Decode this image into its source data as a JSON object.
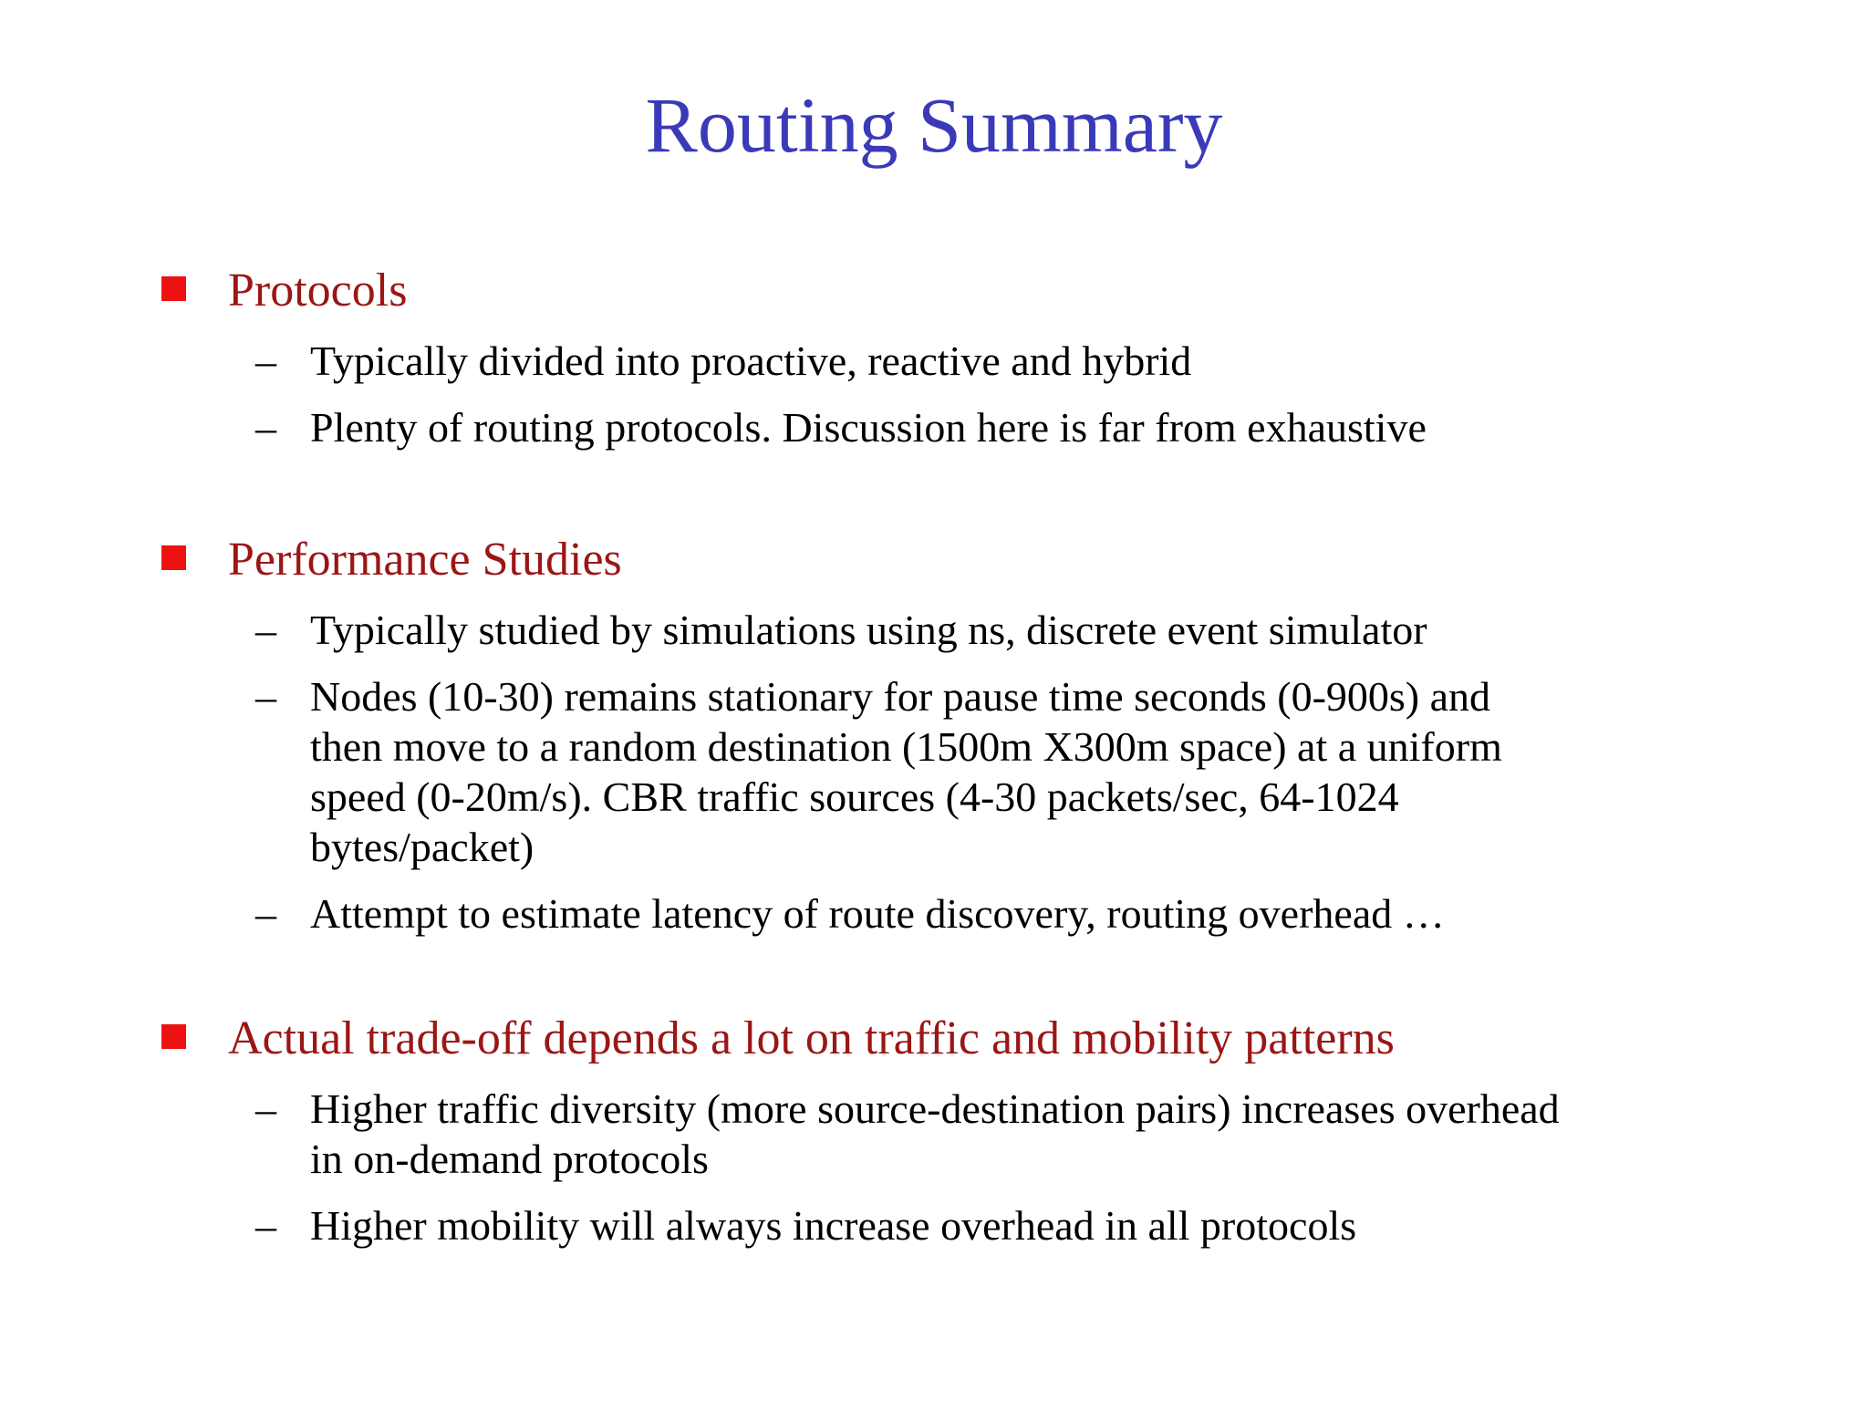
{
  "slide": {
    "title": "Routing Summary",
    "list_marker": "–",
    "colors": {
      "background": "#ffffff",
      "title_text": "#3a3ab9",
      "heading_text": "#9b1616",
      "bullet_square": "#ed1212",
      "body_text": "#000000"
    },
    "sections": [
      {
        "heading": "Protocols",
        "items": [
          "Typically divided into proactive, reactive and hybrid",
          "Plenty of routing protocols. Discussion here is far from exhaustive"
        ]
      },
      {
        "heading": "Performance Studies",
        "items": [
          "Typically studied by simulations using ns, discrete event simulator",
          "Nodes (10-30) remains stationary for pause time seconds (0-900s) and\nthen move to a random destination (1500m X300m space) at a uniform\nspeed (0-20m/s). CBR traffic sources (4-30 packets/sec, 64-1024\nbytes/packet)",
          "Attempt to estimate latency of route discovery, routing overhead …"
        ]
      },
      {
        "heading": "Actual trade-off depends a lot on traffic and mobility patterns",
        "items": [
          "Higher traffic diversity (more source-destination pairs) increases overhead\nin on-demand protocols",
          "Higher mobility will always increase overhead in all protocols"
        ]
      }
    ]
  }
}
